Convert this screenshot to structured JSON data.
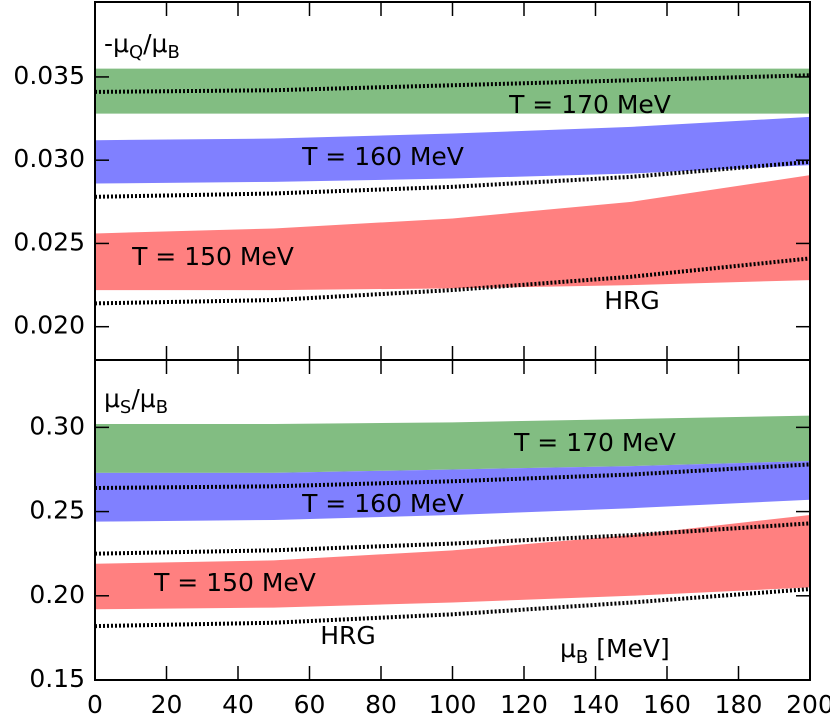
{
  "chart_data": [
    {
      "type": "band",
      "ylabel": [
        {
          "text": "-μ"
        },
        {
          "text": "Q",
          "sub": true
        },
        {
          "text": "/μ"
        },
        {
          "text": "B",
          "sub": true
        }
      ],
      "x": [
        0,
        50,
        100,
        150,
        200
      ],
      "xlim": [
        0,
        200
      ],
      "ylim": [
        0.018,
        0.0395
      ],
      "yticks": [
        {
          "value": 0.02,
          "label": "0.020"
        },
        0.025,
        {
          "value": 0.03,
          "label": "0.030"
        },
        0.035
      ],
      "series": [
        {
          "name": "T = 170 MeV",
          "color": "#82bd82",
          "upper": [
            0.0355,
            0.0355,
            0.0355,
            0.0355,
            0.0355
          ],
          "lower": [
            0.0328,
            0.0328,
            0.0328,
            0.0328,
            0.0328
          ]
        },
        {
          "name": "T = 160 MeV",
          "color": "#8080ff",
          "upper": [
            0.0312,
            0.0313,
            0.0316,
            0.032,
            0.0326
          ],
          "lower": [
            0.0286,
            0.0287,
            0.0289,
            0.0292,
            0.0297
          ]
        },
        {
          "name": "T = 150 MeV",
          "color": "#ff8080",
          "upper": [
            0.0256,
            0.0259,
            0.0265,
            0.0275,
            0.0291
          ],
          "lower": [
            0.0222,
            0.0222,
            0.0223,
            0.0225,
            0.0228
          ]
        }
      ],
      "hrg": {
        "name": "HRG",
        "lines": [
          [
            0.0341,
            0.0342,
            0.0345,
            0.0348,
            0.0351
          ],
          [
            0.0278,
            0.028,
            0.0284,
            0.029,
            0.0299
          ],
          [
            0.0214,
            0.0216,
            0.0222,
            0.023,
            0.0241
          ]
        ]
      }
    },
    {
      "type": "band",
      "ylabel": [
        {
          "text": "μ"
        },
        {
          "text": "S",
          "sub": true
        },
        {
          "text": "/μ"
        },
        {
          "text": "B",
          "sub": true
        }
      ],
      "xlabel": [
        {
          "text": "μ"
        },
        {
          "text": "B",
          "sub": true
        },
        {
          "text": " [MeV]"
        }
      ],
      "x": [
        0,
        50,
        100,
        150,
        200
      ],
      "xlim": [
        0,
        200
      ],
      "xticks": [
        0,
        20,
        40,
        60,
        80,
        100,
        120,
        140,
        160,
        180,
        200
      ],
      "ylim": [
        0.15,
        0.34
      ],
      "yticks": [
        0.15,
        {
          "value": 0.2,
          "label": "0.20"
        },
        0.25,
        {
          "value": 0.3,
          "label": "0.30"
        }
      ],
      "series": [
        {
          "name": "T = 170 MeV",
          "color": "#82bd82",
          "upper": [
            0.302,
            0.302,
            0.303,
            0.305,
            0.307
          ],
          "lower": [
            0.273,
            0.273,
            0.275,
            0.277,
            0.28
          ]
        },
        {
          "name": "T = 160 MeV",
          "color": "#8080ff",
          "upper": [
            0.273,
            0.273,
            0.275,
            0.277,
            0.28
          ],
          "lower": [
            0.244,
            0.245,
            0.248,
            0.252,
            0.257
          ]
        },
        {
          "name": "T = 150 MeV",
          "color": "#ff8080",
          "upper": [
            0.219,
            0.221,
            0.227,
            0.236,
            0.248
          ],
          "lower": [
            0.192,
            0.193,
            0.196,
            0.2,
            0.205
          ]
        }
      ],
      "hrg": {
        "name": "HRG",
        "lines": [
          [
            0.264,
            0.265,
            0.268,
            0.272,
            0.278
          ],
          [
            0.225,
            0.227,
            0.231,
            0.236,
            0.243
          ],
          [
            0.182,
            0.184,
            0.189,
            0.196,
            0.204
          ]
        ]
      }
    }
  ]
}
